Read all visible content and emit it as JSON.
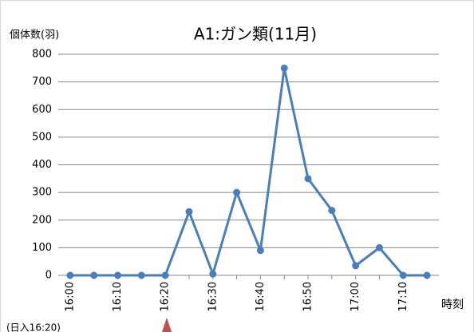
{
  "chart_data": {
    "type": "line",
    "title": "A1:ガン類(11月)",
    "y_label": "個体数(羽)",
    "x_label": "時刻",
    "annotation": "(日入16:20)",
    "categories": [
      "16:00",
      null,
      "16:10",
      null,
      "16:20",
      null,
      "16:30",
      null,
      "16:40",
      null,
      "16:50",
      null,
      "17:00",
      null,
      "17:10",
      null
    ],
    "series": [
      {
        "name": "A1",
        "color": "#4a7ebb",
        "values": [
          0,
          0,
          0,
          0,
          0,
          230,
          5,
          300,
          90,
          750,
          350,
          235,
          35,
          100,
          0,
          0
        ]
      }
    ],
    "ylim": [
      0,
      800
    ],
    "yticks": [
      0,
      100,
      200,
      300,
      400,
      500,
      600,
      700,
      800
    ],
    "grid": true
  }
}
